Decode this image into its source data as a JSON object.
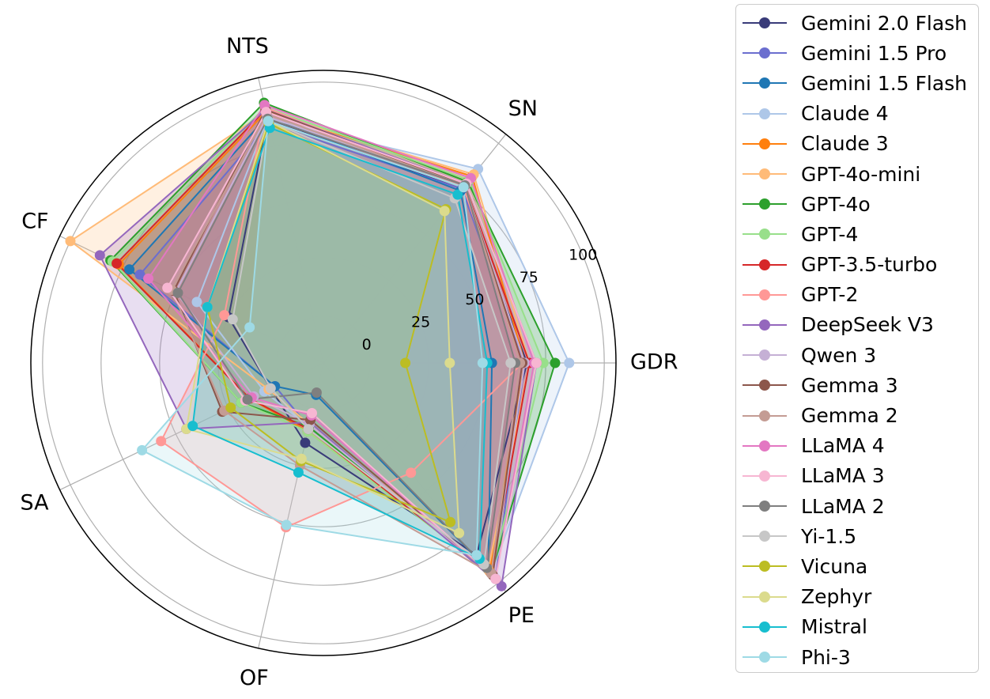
{
  "chart_data": {
    "type": "radar",
    "axes": [
      "GDR",
      "SN",
      "NTS",
      "CF",
      "SA",
      "OF",
      "PE"
    ],
    "radial_ticks": [
      "0",
      "25",
      "50",
      "75",
      "100"
    ],
    "rlim": [
      -20,
      105
    ],
    "series": [
      {
        "name": "Gemini 2.0 Flash",
        "color": "#393b79",
        "values": [
          67,
          75,
          87,
          25,
          5,
          15,
          85
        ]
      },
      {
        "name": "Gemini 1.5 Pro",
        "color": "#6b6ecf",
        "values": [
          66,
          75,
          85,
          67,
          3,
          8,
          98
        ]
      },
      {
        "name": "Gemini 1.5 Flash",
        "color": "#1f77b4",
        "values": [
          52,
          74,
          88,
          72,
          3,
          -6,
          93
        ]
      },
      {
        "name": "Claude 4",
        "color": "#aec7e8",
        "values": [
          85,
          86,
          87,
          40,
          8,
          8,
          95
        ]
      },
      {
        "name": "Claude 3",
        "color": "#ff7f0e",
        "values": [
          66,
          82,
          90,
          77,
          15,
          10,
          94
        ]
      },
      {
        "name": "GPT-4o-mini",
        "color": "#ffbb78",
        "values": [
          68,
          83,
          90,
          100,
          6,
          7,
          93
        ]
      },
      {
        "name": "GPT-4o",
        "color": "#2ca02c",
        "values": [
          79,
          79,
          94,
          81,
          19,
          8,
          95
        ]
      },
      {
        "name": "GPT-4",
        "color": "#98df8a",
        "values": [
          74,
          80,
          92,
          80,
          19,
          10,
          95
        ]
      },
      {
        "name": "GPT-3.5-turbo",
        "color": "#d62728",
        "values": [
          68,
          77,
          91,
          78,
          15,
          9,
          95
        ]
      },
      {
        "name": "GPT-2",
        "color": "#ff9896",
        "values": [
          65,
          76,
          92,
          27,
          57,
          52,
          40
        ]
      },
      {
        "name": "DeepSeek V3",
        "color": "#9467bd",
        "values": [
          71,
          78,
          91,
          86,
          45,
          6,
          102
        ]
      },
      {
        "name": "Qwen 3",
        "color": "#c5b0d5",
        "values": [
          66,
          77,
          88,
          50,
          13,
          7,
          96
        ]
      },
      {
        "name": "Gemma 3",
        "color": "#8c564b",
        "values": [
          65,
          77,
          91,
          51,
          28,
          5,
          96
        ]
      },
      {
        "name": "Gemma 2",
        "color": "#c49c94",
        "values": [
          64,
          77,
          89,
          52,
          27,
          25,
          95
        ]
      },
      {
        "name": "LLaMA 4",
        "color": "#e377c2",
        "values": [
          70,
          81,
          93,
          63,
          14,
          3,
          98
        ]
      },
      {
        "name": "LLaMA 3",
        "color": "#f7b6d2",
        "values": [
          71,
          78,
          90,
          54,
          17,
          2,
          98
        ]
      },
      {
        "name": "LLaMA 2",
        "color": "#7f7f7f",
        "values": [
          62,
          77,
          87,
          49,
          16,
          -7,
          92
        ]
      },
      {
        "name": "Yi-1.5",
        "color": "#c7c7c7",
        "values": [
          60,
          70,
          86,
          23,
          5,
          9,
          90
        ]
      },
      {
        "name": "Vicuna",
        "color": "#bcbd22",
        "values": [
          15,
          64,
          85,
          35,
          24,
          23,
          67
        ]
      },
      {
        "name": "Zephyr",
        "color": "#dbdb8d",
        "values": [
          34,
          63,
          86,
          35,
          45,
          22,
          73
        ]
      },
      {
        "name": "Mistral",
        "color": "#17becf",
        "values": [
          50,
          72,
          83,
          35,
          42,
          28,
          87
        ]
      },
      {
        "name": "Phi-3",
        "color": "#9edae5",
        "values": [
          48,
          76,
          86,
          15,
          66,
          51,
          85
        ]
      }
    ]
  }
}
